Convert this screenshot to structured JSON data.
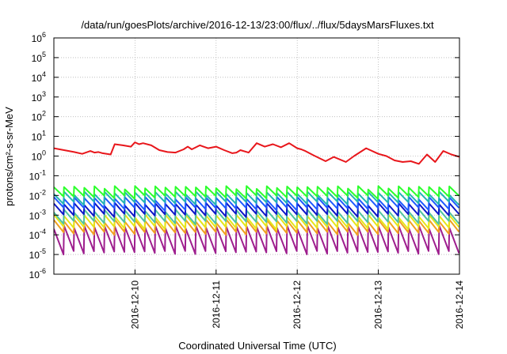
{
  "chart_data": {
    "type": "line",
    "title": "/data/run/goesPlots/archive/2016-12-13/23:00/flux/../flux/5daysMarsFluxes.txt",
    "xlabel": "Coordinated Universal Time (UTC)",
    "ylabel": "protons/cm²-s-sr-MeV",
    "y_scale": "log",
    "ylim": [
      1e-06,
      1000000.0
    ],
    "xlim": [
      "2016-12-09 00:00",
      "2016-12-14 00:00"
    ],
    "x_ticks": [
      "2016-12-10",
      "2016-12-11",
      "2016-12-12",
      "2016-12-13",
      "2016-12-14"
    ],
    "y_ticks": [
      {
        "base": "10",
        "exp": "6"
      },
      {
        "base": "10",
        "exp": "5"
      },
      {
        "base": "10",
        "exp": "4"
      },
      {
        "base": "10",
        "exp": "3"
      },
      {
        "base": "10",
        "exp": "2"
      },
      {
        "base": "10",
        "exp": "1"
      },
      {
        "base": "10",
        "exp": "0"
      },
      {
        "base": "10",
        "exp": "-1"
      },
      {
        "base": "10",
        "exp": "-2"
      },
      {
        "base": "10",
        "exp": "-3"
      },
      {
        "base": "10",
        "exp": "-4"
      },
      {
        "base": "10",
        "exp": "-5"
      },
      {
        "base": "10",
        "exp": "-6"
      }
    ],
    "grid": true,
    "series": [
      {
        "color": "#e8161b",
        "x_days": [
          0.0,
          0.25,
          0.35,
          0.45,
          0.5,
          0.55,
          0.6,
          0.7,
          0.75,
          0.85,
          0.95,
          1.0,
          1.05,
          1.1,
          1.2,
          1.3,
          1.4,
          1.5,
          1.6,
          1.65,
          1.7,
          1.8,
          1.9,
          2.0,
          2.1,
          2.2,
          2.25,
          2.3,
          2.4,
          2.5,
          2.6,
          2.7,
          2.8,
          2.9,
          3.0,
          3.05,
          3.1,
          3.2,
          3.35,
          3.45,
          3.6,
          3.7,
          3.85,
          4.0,
          4.1,
          4.2,
          4.3,
          4.4,
          4.5,
          4.6,
          4.7,
          4.8,
          4.9,
          5.0
        ],
        "y": [
          2.5,
          1.6,
          1.3,
          1.8,
          1.5,
          1.6,
          1.4,
          1.2,
          4.0,
          3.5,
          3.0,
          5.0,
          4.0,
          4.5,
          3.5,
          2.0,
          1.6,
          1.5,
          2.2,
          3.0,
          2.2,
          3.5,
          2.5,
          3.0,
          2.0,
          1.4,
          1.5,
          2.0,
          1.5,
          4.5,
          3.0,
          4.0,
          2.8,
          4.5,
          2.5,
          2.2,
          1.8,
          1.1,
          0.55,
          0.9,
          0.5,
          1.0,
          2.5,
          1.3,
          1.0,
          0.6,
          0.5,
          0.55,
          0.4,
          1.2,
          0.5,
          1.8,
          1.2,
          0.9
        ]
      },
      {
        "color": "#2cff2c",
        "base": 0.025,
        "ratio": 3.0
      },
      {
        "color": "#23b4b4",
        "base": 0.013,
        "ratio": 3.2
      },
      {
        "color": "#1e5aff",
        "base": 0.007,
        "ratio": 3.4
      },
      {
        "color": "#0d17c8",
        "base": 0.0035,
        "ratio": 3.6
      },
      {
        "color": "#4fc3a0",
        "base": 0.0016,
        "ratio": 3.8
      },
      {
        "color": "#e6e61a",
        "base": 0.0009,
        "ratio": 4.0
      },
      {
        "color": "#f0a020",
        "base": 0.0005,
        "ratio": 4.2
      },
      {
        "color": "#9e1e8e",
        "base": 0.00025,
        "ratio": 20.0
      }
    ]
  }
}
